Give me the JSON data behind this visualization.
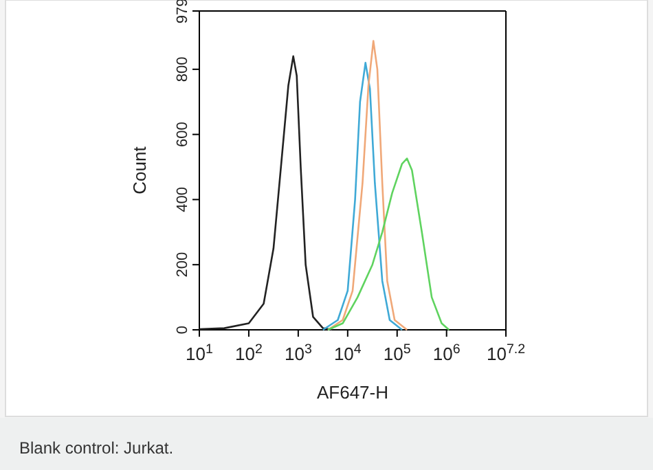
{
  "chart_data": {
    "type": "line",
    "xlabel": "AF647-H",
    "ylabel": "Count",
    "log": "x",
    "grid": false,
    "marker": "none",
    "line_style": "solid",
    "xlim": [
      10,
      15848932
    ],
    "xticks": [
      {
        "value": 10,
        "label": "10$^{1}$"
      },
      {
        "value": 100,
        "label": "10$^{2}$"
      },
      {
        "value": 1000,
        "label": "10$^{3}$"
      },
      {
        "value": 10000,
        "label": "10$^{4}$"
      },
      {
        "value": 100000,
        "label": "10$^{5}$"
      },
      {
        "value": 1000000,
        "label": "10$^{6}$"
      },
      {
        "value": 15848932,
        "label": "10$^{7.2}$"
      }
    ],
    "ylim": [
      0,
      979
    ],
    "yticks": [
      0,
      200,
      400,
      600,
      800,
      979
    ],
    "series": [
      {
        "color": "#222222",
        "x": [
          10,
          32,
          100,
          200,
          316,
          447,
          631,
          794,
          933,
          1122,
          1413,
          1995,
          3162,
          5012
        ],
        "values": [
          2,
          5,
          20,
          80,
          250,
          500,
          750,
          840,
          780,
          500,
          200,
          40,
          5,
          0
        ]
      },
      {
        "color": "#3fa9d6",
        "x": [
          3162,
          6310,
          10000,
          14125,
          17783,
          22909,
          28184,
          35481,
          50119,
          70795,
          125893
        ],
        "values": [
          0,
          30,
          120,
          400,
          700,
          820,
          740,
          450,
          150,
          30,
          0
        ]
      },
      {
        "color": "#f0a878",
        "x": [
          3981,
          7943,
          12589,
          19953,
          26303,
          33113,
          39811,
          50119,
          63096,
          89125,
          158489
        ],
        "values": [
          0,
          30,
          120,
          450,
          750,
          887,
          800,
          450,
          150,
          30,
          0
        ]
      },
      {
        "color": "#5fd35f",
        "x": [
          3981,
          7943,
          15849,
          31623,
          50119,
          79433,
          125893,
          158489,
          199526,
          316228,
          501187,
          794328,
          1122018
        ],
        "values": [
          0,
          20,
          100,
          200,
          300,
          420,
          510,
          526,
          490,
          300,
          100,
          20,
          0
        ]
      }
    ],
    "annotations": [
      "Blank control: Jurkat."
    ]
  }
}
